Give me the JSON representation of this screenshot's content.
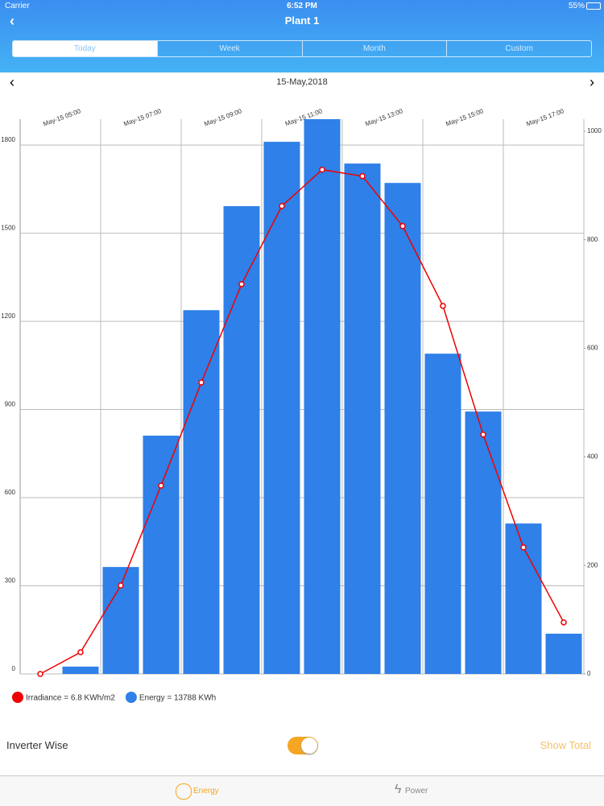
{
  "status_bar": {
    "carrier": "Carrier",
    "time": "6:52 PM",
    "battery": "55%"
  },
  "header": {
    "title": "Plant 1"
  },
  "tabs": [
    "Today",
    "Week",
    "Month",
    "Custom"
  ],
  "date_nav": {
    "date": "15-May,2018"
  },
  "chart_data": {
    "type": "bar-line",
    "categories": [
      null,
      "May-15 05:00",
      null,
      "May-15 07:00",
      null,
      "May-15 09:00",
      null,
      "May-15 11:00",
      null,
      "May-15 13:00",
      null,
      "May-15 15:00",
      null,
      "May-15 17:00"
    ],
    "series": [
      {
        "name": "Irradiance = 6.8 KWh/m2",
        "color": "#f00000",
        "type": "line",
        "axis": "y2",
        "values": [
          0,
          40,
          163,
          347,
          537,
          718,
          862,
          929,
          917,
          825,
          678,
          441,
          233,
          95
        ]
      },
      {
        "name": "Energy = 13788 KWh",
        "color": "#2f80e8",
        "type": "bar",
        "values": [
          0,
          25,
          364,
          811,
          1238,
          1592,
          1811,
          1888,
          1737,
          1671,
          1090,
          893,
          512,
          137
        ]
      }
    ],
    "ylim": [
      0,
      1888
    ],
    "yticks": [
      0,
      300,
      600,
      900,
      1200,
      1500,
      1800
    ],
    "y2lim": [
      0,
      1022
    ],
    "y2ticks": [
      0,
      200,
      400,
      600,
      800,
      1000
    ],
    "grid": true,
    "legend": "bottom-left"
  },
  "controls": {
    "inverter_label": "Inverter Wise",
    "show_total": "Show Total"
  },
  "bottom_tabs": [
    "Energy",
    "Power"
  ]
}
